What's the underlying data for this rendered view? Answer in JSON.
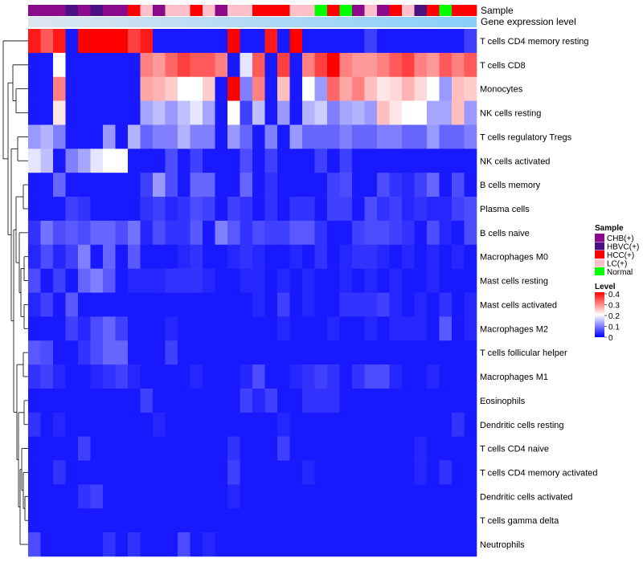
{
  "chart_data": {
    "type": "heatmap",
    "annotation_labels": [
      "Sample",
      "Gene expression level"
    ],
    "samples": [
      "CHB(+)",
      "CHB(+)",
      "CHB(+)",
      "HBVC(+)",
      "CHB(+)",
      "HBVC(+)",
      "CHB(+)",
      "CHB(+)",
      "HCC(+)",
      "LC(+)",
      "CHB(+)",
      "LC(+)",
      "LC(+)",
      "HCC(+)",
      "LC(+)",
      "CHB(+)",
      "LC(+)",
      "LC(+)",
      "HCC(+)",
      "HCC(+)",
      "HCC(+)",
      "LC(+)",
      "LC(+)",
      "Normal",
      "HCC(+)",
      "Normal",
      "CHB(+)",
      "LC(+)",
      "CHB(+)",
      "HCC(+)",
      "LC(+)",
      "HBVC(+)",
      "HCC(+)",
      "Normal",
      "HCC(+)",
      "HCC(+)"
    ],
    "sample_colors": {
      "CHB(+)": "#8b0a8b",
      "HBVC(+)": "#4b1082",
      "HCC(+)": "#ff0000",
      "LC(+)": "#ffc0cb",
      "Normal": "#00ff00"
    },
    "expression_bar_colors": [
      "#dde6f0",
      "#87cefa"
    ],
    "rows": [
      {
        "name": "T cells CD4 memory resting",
        "values": [
          0.38,
          0.33,
          0.38,
          0.02,
          0.4,
          0.4,
          0.4,
          0.4,
          0.35,
          0.38,
          0.02,
          0.02,
          0.02,
          0.02,
          0.02,
          0.02,
          0.4,
          0.02,
          0.02,
          0.38,
          0.02,
          0.4,
          0.02,
          0.02,
          0.02,
          0.02,
          0.02,
          0.05,
          0.02,
          0.02,
          0.02,
          0.02,
          0.02,
          0.02,
          0.02,
          0.05
        ]
      },
      {
        "name": "T cells CD8",
        "values": [
          0.02,
          0.02,
          0.2,
          0.02,
          0.02,
          0.02,
          0.02,
          0.02,
          0.02,
          0.3,
          0.28,
          0.32,
          0.35,
          0.33,
          0.33,
          0.3,
          0.02,
          0.18,
          0.33,
          0.02,
          0.35,
          0.02,
          0.3,
          0.35,
          0.4,
          0.3,
          0.28,
          0.28,
          0.3,
          0.33,
          0.35,
          0.3,
          0.28,
          0.33,
          0.3,
          0.33
        ]
      },
      {
        "name": "Monocytes",
        "values": [
          0.02,
          0.02,
          0.3,
          0.02,
          0.02,
          0.02,
          0.02,
          0.02,
          0.02,
          0.27,
          0.26,
          0.24,
          0.2,
          0.2,
          0.24,
          0.02,
          0.4,
          0.1,
          0.3,
          0.02,
          0.25,
          0.02,
          0.2,
          0.12,
          0.32,
          0.27,
          0.3,
          0.25,
          0.22,
          0.23,
          0.26,
          0.23,
          0.2,
          0.12,
          0.25,
          0.24
        ]
      },
      {
        "name": "NK cells resting",
        "values": [
          0.02,
          0.02,
          0.22,
          0.02,
          0.02,
          0.02,
          0.02,
          0.02,
          0.02,
          0.13,
          0.15,
          0.12,
          0.15,
          0.18,
          0.13,
          0.02,
          0.2,
          0.05,
          0.15,
          0.02,
          0.12,
          0.02,
          0.14,
          0.16,
          0.1,
          0.13,
          0.14,
          0.12,
          0.25,
          0.22,
          0.2,
          0.2,
          0.13,
          0.13,
          0.25,
          0.12
        ]
      },
      {
        "name": "T cells regulatory  Tregs",
        "values": [
          0.12,
          0.14,
          0.1,
          0.02,
          0.02,
          0.02,
          0.12,
          0.02,
          0.14,
          0.08,
          0.1,
          0.1,
          0.14,
          0.1,
          0.1,
          0.02,
          0.12,
          0.08,
          0.02,
          0.1,
          0.02,
          0.12,
          0.08,
          0.08,
          0.08,
          0.1,
          0.08,
          0.08,
          0.1,
          0.1,
          0.08,
          0.08,
          0.12,
          0.08,
          0.08,
          0.1
        ]
      },
      {
        "name": "NK cells activated",
        "values": [
          0.18,
          0.15,
          0.02,
          0.1,
          0.13,
          0.18,
          0.2,
          0.2,
          0.02,
          0.02,
          0.02,
          0.06,
          0.02,
          0.05,
          0.02,
          0.02,
          0.02,
          0.06,
          0.02,
          0.05,
          0.02,
          0.02,
          0.02,
          0.05,
          0.02,
          0.05,
          0.02,
          0.02,
          0.02,
          0.02,
          0.02,
          0.02,
          0.02,
          0.02,
          0.02,
          0.02
        ]
      },
      {
        "name": "B cells memory",
        "values": [
          0.02,
          0.02,
          0.08,
          0.02,
          0.02,
          0.02,
          0.02,
          0.02,
          0.02,
          0.05,
          0.12,
          0.06,
          0.02,
          0.08,
          0.08,
          0.02,
          0.02,
          0.08,
          0.02,
          0.04,
          0.02,
          0.02,
          0.02,
          0.02,
          0.05,
          0.06,
          0.02,
          0.02,
          0.06,
          0.04,
          0.03,
          0.05,
          0.08,
          0.02,
          0.06,
          0.02
        ]
      },
      {
        "name": "Plasma cells",
        "values": [
          0.02,
          0.02,
          0.02,
          0.05,
          0.04,
          0.02,
          0.02,
          0.02,
          0.02,
          0.04,
          0.05,
          0.03,
          0.04,
          0.06,
          0.05,
          0.02,
          0.05,
          0.04,
          0.02,
          0.04,
          0.02,
          0.04,
          0.04,
          0.02,
          0.05,
          0.05,
          0.02,
          0.06,
          0.04,
          0.05,
          0.03,
          0.04,
          0.03,
          0.03,
          0.05,
          0.06
        ]
      },
      {
        "name": "B cells naive",
        "values": [
          0.04,
          0.09,
          0.06,
          0.07,
          0.06,
          0.08,
          0.08,
          0.06,
          0.09,
          0.03,
          0.06,
          0.04,
          0.04,
          0.07,
          0.02,
          0.1,
          0.07,
          0.04,
          0.06,
          0.05,
          0.05,
          0.07,
          0.07,
          0.04,
          0.02,
          0.02,
          0.05,
          0.06,
          0.06,
          0.05,
          0.04,
          0.02,
          0.06,
          0.03,
          0.02,
          0.06
        ]
      },
      {
        "name": "Macrophages M0",
        "values": [
          0.03,
          0.06,
          0.03,
          0.05,
          0.1,
          0.02,
          0.08,
          0.02,
          0.07,
          0.02,
          0.02,
          0.02,
          0.03,
          0.04,
          0.02,
          0.02,
          0.03,
          0.04,
          0.03,
          0.02,
          0.02,
          0.03,
          0.02,
          0.04,
          0.02,
          0.03,
          0.04,
          0.04,
          0.03,
          0.02,
          0.03,
          0.02,
          0.03,
          0.02,
          0.03,
          0.02
        ]
      },
      {
        "name": "Mast cells resting",
        "values": [
          0.06,
          0.02,
          0.05,
          0.02,
          0.08,
          0.1,
          0.07,
          0.02,
          0.03,
          0.03,
          0.03,
          0.04,
          0.04,
          0.04,
          0.03,
          0.02,
          0.02,
          0.03,
          0.03,
          0.02,
          0.03,
          0.02,
          0.03,
          0.02,
          0.02,
          0.03,
          0.02,
          0.03,
          0.02,
          0.03,
          0.02,
          0.02,
          0.03,
          0.02,
          0.02,
          0.02
        ]
      },
      {
        "name": "Mast cells activated",
        "values": [
          0.03,
          0.05,
          0.02,
          0.07,
          0.02,
          0.02,
          0.02,
          0.02,
          0.02,
          0.02,
          0.02,
          0.02,
          0.02,
          0.02,
          0.02,
          0.02,
          0.02,
          0.02,
          0.03,
          0.02,
          0.05,
          0.02,
          0.03,
          0.02,
          0.02,
          0.04,
          0.04,
          0.04,
          0.05,
          0.03,
          0.02,
          0.03,
          0.02,
          0.04,
          0.02,
          0.03
        ]
      },
      {
        "name": "Macrophages M2",
        "values": [
          0.02,
          0.02,
          0.02,
          0.05,
          0.03,
          0.06,
          0.08,
          0.05,
          0.02,
          0.02,
          0.02,
          0.03,
          0.02,
          0.02,
          0.02,
          0.02,
          0.02,
          0.02,
          0.02,
          0.02,
          0.03,
          0.02,
          0.02,
          0.02,
          0.03,
          0.02,
          0.02,
          0.03,
          0.02,
          0.03,
          0.03,
          0.03,
          0.02,
          0.07,
          0.02,
          0.03
        ]
      },
      {
        "name": "T cells follicular helper",
        "values": [
          0.07,
          0.06,
          0.02,
          0.02,
          0.04,
          0.06,
          0.08,
          0.08,
          0.02,
          0.02,
          0.02,
          0.05,
          0.02,
          0.02,
          0.02,
          0.02,
          0.02,
          0.02,
          0.02,
          0.02,
          0.02,
          0.02,
          0.02,
          0.02,
          0.02,
          0.02,
          0.02,
          0.02,
          0.02,
          0.02,
          0.02,
          0.02,
          0.02,
          0.02,
          0.02,
          0.02
        ]
      },
      {
        "name": "Macrophages M1",
        "values": [
          0.04,
          0.05,
          0.03,
          0.02,
          0.02,
          0.03,
          0.04,
          0.05,
          0.03,
          0.02,
          0.02,
          0.02,
          0.02,
          0.03,
          0.02,
          0.02,
          0.02,
          0.03,
          0.06,
          0.02,
          0.02,
          0.03,
          0.04,
          0.05,
          0.04,
          0.02,
          0.04,
          0.06,
          0.06,
          0.03,
          0.02,
          0.02,
          0.03,
          0.02,
          0.02,
          0.02
        ]
      },
      {
        "name": "Eosinophils",
        "values": [
          0.02,
          0.02,
          0.02,
          0.02,
          0.02,
          0.02,
          0.02,
          0.02,
          0.02,
          0.05,
          0.02,
          0.02,
          0.02,
          0.02,
          0.02,
          0.02,
          0.02,
          0.05,
          0.03,
          0.05,
          0.02,
          0.02,
          0.04,
          0.04,
          0.04,
          0.02,
          0.02,
          0.02,
          0.02,
          0.02,
          0.02,
          0.02,
          0.02,
          0.02,
          0.02,
          0.02
        ]
      },
      {
        "name": "Dendritic cells resting",
        "values": [
          0.04,
          0.02,
          0.03,
          0.02,
          0.02,
          0.02,
          0.02,
          0.02,
          0.02,
          0.02,
          0.03,
          0.02,
          0.02,
          0.02,
          0.02,
          0.02,
          0.02,
          0.02,
          0.02,
          0.02,
          0.03,
          0.02,
          0.02,
          0.02,
          0.02,
          0.02,
          0.02,
          0.02,
          0.02,
          0.02,
          0.02,
          0.02,
          0.02,
          0.02,
          0.04,
          0.02
        ]
      },
      {
        "name": "T cells CD4 naive",
        "values": [
          0.02,
          0.02,
          0.02,
          0.02,
          0.05,
          0.02,
          0.02,
          0.02,
          0.02,
          0.02,
          0.02,
          0.02,
          0.02,
          0.02,
          0.02,
          0.02,
          0.04,
          0.02,
          0.02,
          0.02,
          0.05,
          0.02,
          0.02,
          0.02,
          0.02,
          0.02,
          0.02,
          0.02,
          0.02,
          0.02,
          0.02,
          0.03,
          0.02,
          0.02,
          0.02,
          0.02
        ]
      },
      {
        "name": "T cells CD4 memory activated",
        "values": [
          0.02,
          0.02,
          0.04,
          0.02,
          0.02,
          0.02,
          0.02,
          0.02,
          0.02,
          0.02,
          0.02,
          0.02,
          0.02,
          0.02,
          0.02,
          0.02,
          0.05,
          0.02,
          0.02,
          0.02,
          0.02,
          0.02,
          0.03,
          0.02,
          0.02,
          0.02,
          0.02,
          0.02,
          0.02,
          0.02,
          0.02,
          0.03,
          0.02,
          0.04,
          0.02,
          0.02
        ]
      },
      {
        "name": "Dendritic cells activated",
        "values": [
          0.02,
          0.02,
          0.02,
          0.02,
          0.04,
          0.05,
          0.02,
          0.02,
          0.02,
          0.02,
          0.02,
          0.02,
          0.02,
          0.02,
          0.02,
          0.02,
          0.03,
          0.02,
          0.02,
          0.02,
          0.02,
          0.02,
          0.02,
          0.02,
          0.02,
          0.02,
          0.02,
          0.02,
          0.02,
          0.02,
          0.02,
          0.02,
          0.02,
          0.02,
          0.02,
          0.02
        ]
      },
      {
        "name": "T cells gamma delta",
        "values": [
          0.02,
          0.02,
          0.02,
          0.02,
          0.02,
          0.02,
          0.02,
          0.02,
          0.02,
          0.02,
          0.02,
          0.02,
          0.02,
          0.02,
          0.02,
          0.02,
          0.02,
          0.02,
          0.02,
          0.02,
          0.02,
          0.02,
          0.02,
          0.02,
          0.02,
          0.02,
          0.02,
          0.02,
          0.02,
          0.02,
          0.02,
          0.02,
          0.02,
          0.02,
          0.02,
          0.02
        ]
      },
      {
        "name": "Neutrophils",
        "values": [
          0.06,
          0.02,
          0.02,
          0.02,
          0.02,
          0.02,
          0.04,
          0.02,
          0.04,
          0.02,
          0.02,
          0.02,
          0.06,
          0.02,
          0.03,
          0.02,
          0.02,
          0.02,
          0.02,
          0.02,
          0.02,
          0.02,
          0.02,
          0.02,
          0.02,
          0.02,
          0.02,
          0.02,
          0.02,
          0.02,
          0.02,
          0.02,
          0.02,
          0.02,
          0.02,
          0.02
        ]
      }
    ],
    "color_scale": {
      "min": 0,
      "mid": 0.2,
      "max": 0.4,
      "low_color": "#0000ff",
      "mid_color": "#ffffff",
      "high_color": "#ff0000"
    },
    "legend": {
      "sample_title": "Sample",
      "sample_entries": [
        {
          "label": "CHB(+)",
          "color": "#8b0a8b"
        },
        {
          "label": "HBVC(+)",
          "color": "#4b1082"
        },
        {
          "label": "HCC(+)",
          "color": "#ff0000"
        },
        {
          "label": "LC(+)",
          "color": "#ffc0cb"
        },
        {
          "label": "Normal",
          "color": "#00ff00"
        }
      ],
      "level_title": "Level",
      "level_ticks": [
        "0.4",
        "0.3",
        "0.2",
        "0.1",
        "0"
      ],
      "level_tick_values": [
        0.4,
        0.3,
        0.2,
        0.1,
        0
      ]
    },
    "dendrogram_order": "rows clustered; hierarchical tree on left"
  }
}
